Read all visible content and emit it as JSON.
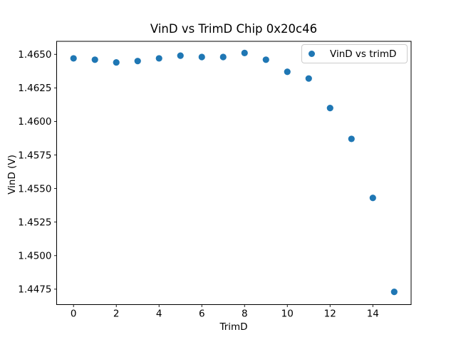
{
  "figure": {
    "background_color": "#ffffff",
    "spine_color": "#000000",
    "text_color": "#000000"
  },
  "chart_data": {
    "type": "scatter",
    "title": "VinD vs TrimD Chip 0x20c46",
    "xlabel": "TrimD",
    "ylabel": "VinD (V)",
    "series": [
      {
        "name": "VinD vs trimD",
        "marker_color": "#1f77b4",
        "x": [
          0,
          1,
          2,
          3,
          4,
          5,
          6,
          7,
          8,
          9,
          10,
          11,
          12,
          13,
          14,
          15
        ],
        "y": [
          1.4647,
          1.4646,
          1.4644,
          1.4645,
          1.4647,
          1.4649,
          1.4648,
          1.4648,
          1.4651,
          1.4646,
          1.4637,
          1.4632,
          1.461,
          1.4587,
          1.4543,
          1.4473
        ]
      }
    ],
    "xlim": [
      -0.79,
      15.79
    ],
    "ylim": [
      1.44635,
      1.46597
    ],
    "xticks": [
      0,
      2,
      4,
      6,
      8,
      10,
      12,
      14
    ],
    "xtick_labels": [
      "0",
      "2",
      "4",
      "6",
      "8",
      "10",
      "12",
      "14"
    ],
    "yticks": [
      1.4475,
      1.45,
      1.4525,
      1.455,
      1.4575,
      1.46,
      1.4625,
      1.465
    ],
    "ytick_labels": [
      "1.4475",
      "1.4500",
      "1.4525",
      "1.4550",
      "1.4575",
      "1.4600",
      "1.4625",
      "1.4650"
    ],
    "grid": false,
    "legend": {
      "label": "VinD vs trimD",
      "position": "upper right"
    }
  }
}
